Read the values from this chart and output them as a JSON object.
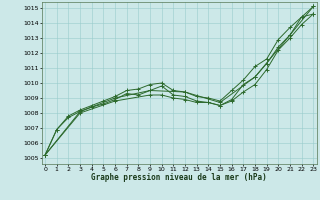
{
  "title": "Graphe pression niveau de la mer (hPa)",
  "bg_color": "#cce8e8",
  "grid_color": "#99cccc",
  "line_color": "#2d6a2d",
  "x_ticks": [
    0,
    1,
    2,
    3,
    4,
    5,
    6,
    7,
    8,
    9,
    10,
    11,
    12,
    13,
    14,
    15,
    16,
    17,
    18,
    19,
    20,
    21,
    22,
    23
  ],
  "y_ticks": [
    1005,
    1006,
    1007,
    1008,
    1009,
    1010,
    1011,
    1012,
    1013,
    1014,
    1015
  ],
  "ylim": [
    1004.6,
    1015.4
  ],
  "xlim": [
    -0.3,
    23.3
  ],
  "series": [
    {
      "x": [
        0,
        1,
        2,
        3,
        4,
        5,
        6,
        7,
        8,
        9,
        10,
        11,
        12,
        13,
        14,
        15,
        16,
        17,
        18,
        19,
        20,
        21,
        22,
        23
      ],
      "y": [
        1005.2,
        1006.9,
        1007.8,
        1008.2,
        1008.5,
        1008.8,
        1009.1,
        1009.5,
        1009.6,
        1009.9,
        1010.0,
        1009.5,
        1009.4,
        1009.1,
        1009.0,
        1008.8,
        1009.5,
        1010.2,
        1011.1,
        1011.6,
        1012.9,
        1013.7,
        1014.4,
        1015.1
      ]
    },
    {
      "x": [
        0,
        1,
        2,
        3,
        4,
        5,
        6,
        7,
        8,
        9,
        10,
        11,
        12,
        13,
        14,
        15,
        16,
        17,
        18,
        19,
        20,
        21,
        22,
        23
      ],
      "y": [
        1005.2,
        1006.9,
        1007.7,
        1008.1,
        1008.4,
        1008.6,
        1008.9,
        1009.3,
        1009.2,
        1009.5,
        1009.8,
        1009.2,
        1009.1,
        1008.8,
        1008.7,
        1008.5,
        1008.9,
        1009.9,
        1010.4,
        1011.3,
        1012.4,
        1013.2,
        1014.4,
        1014.6
      ]
    },
    {
      "x": [
        0,
        3,
        6,
        9,
        12,
        15,
        18,
        21,
        23
      ],
      "y": [
        1005.2,
        1008.1,
        1009.0,
        1009.5,
        1009.4,
        1008.7,
        1010.4,
        1013.2,
        1015.1
      ]
    },
    {
      "x": [
        0,
        3,
        6,
        9,
        10,
        11,
        12,
        13,
        14,
        15,
        16,
        17,
        18,
        19,
        20,
        21,
        22,
        23
      ],
      "y": [
        1005.2,
        1008.0,
        1008.8,
        1009.2,
        1009.2,
        1009.0,
        1008.9,
        1008.7,
        1008.7,
        1008.5,
        1008.8,
        1009.4,
        1009.9,
        1010.9,
        1012.2,
        1013.0,
        1013.9,
        1014.6
      ]
    }
  ]
}
